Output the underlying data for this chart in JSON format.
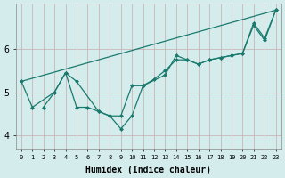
{
  "xlabel": "Humidex (Indice chaleur)",
  "bg_color": "#d4ecec",
  "grid_color": "#b0c8c8",
  "line_color": "#1a7a6e",
  "xlim": [
    -0.5,
    23.5
  ],
  "ylim": [
    3.7,
    7.05
  ],
  "yticks": [
    4,
    5,
    6
  ],
  "xticks": [
    0,
    1,
    2,
    3,
    4,
    5,
    6,
    7,
    8,
    9,
    10,
    11,
    12,
    13,
    14,
    15,
    16,
    17,
    18,
    19,
    20,
    21,
    22,
    23
  ],
  "trend_x": [
    0,
    23
  ],
  "trend_y": [
    5.25,
    6.9
  ],
  "line2_x": [
    0,
    1,
    3,
    4,
    5,
    7,
    8,
    9,
    10,
    11,
    13,
    14,
    15,
    16,
    17,
    18,
    19,
    20,
    21,
    22,
    23
  ],
  "line2_y": [
    5.25,
    4.65,
    5.0,
    5.45,
    5.25,
    4.55,
    4.45,
    4.15,
    4.45,
    5.15,
    5.4,
    5.85,
    5.75,
    5.65,
    5.75,
    5.8,
    5.85,
    5.9,
    6.55,
    6.2,
    6.9
  ],
  "line3_x": [
    2,
    3,
    4,
    5,
    6,
    7,
    8,
    9,
    10,
    11,
    12,
    13,
    14,
    15,
    16,
    17,
    18,
    19,
    20,
    21,
    22,
    23
  ],
  "line3_y": [
    4.65,
    5.0,
    5.45,
    4.65,
    4.65,
    4.55,
    4.45,
    4.45,
    5.15,
    5.15,
    5.3,
    5.5,
    5.75,
    5.75,
    5.65,
    5.75,
    5.8,
    5.85,
    5.9,
    6.6,
    6.25,
    6.9
  ]
}
